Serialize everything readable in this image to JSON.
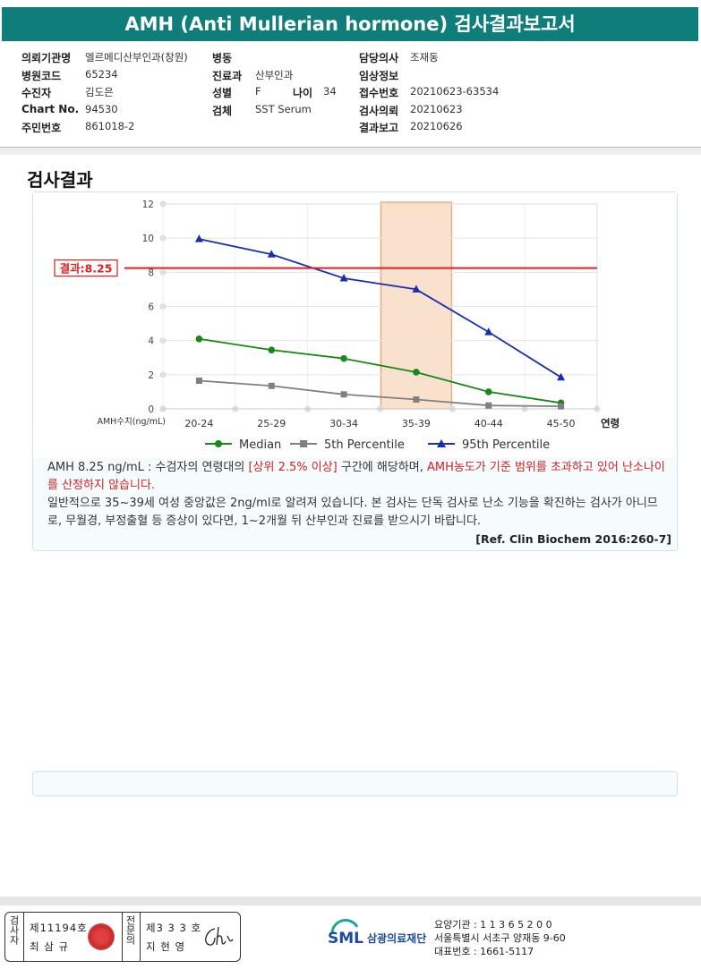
{
  "header": {
    "title": "AMH (Anti Mullerian hormone) 검사결과보고서"
  },
  "info": {
    "col1": [
      {
        "label": "의뢰기관명",
        "value": "엘르메디산부인과(창원)"
      },
      {
        "label": "병원코드",
        "value": "65234"
      },
      {
        "label": "수진자",
        "value": "김도은"
      },
      {
        "label": "Chart No.",
        "value": "94530"
      },
      {
        "label": "주민번호",
        "value": "861018-2"
      }
    ],
    "col2": [
      {
        "label": "병동",
        "value": ""
      },
      {
        "label": "진료과",
        "value": "산부인과"
      },
      {
        "label": "성별",
        "value": "F"
      },
      {
        "label": "검체",
        "value": "SST Serum"
      }
    ],
    "age": {
      "label": "나이",
      "value": "34"
    },
    "col3": [
      {
        "label": "담당의사",
        "value": "조재동"
      },
      {
        "label": "임상정보",
        "value": ""
      },
      {
        "label": "접수번호",
        "value": "20210623-63534"
      },
      {
        "label": "검사의뢰",
        "value": "20210623"
      },
      {
        "label": "결과보고",
        "value": "20210626"
      }
    ]
  },
  "section_title": "검사결과",
  "chart_data": {
    "type": "line",
    "categories": [
      "20-24",
      "25-29",
      "30-34",
      "35-39",
      "40-44",
      "45-50"
    ],
    "series": [
      {
        "name": "Median",
        "values": [
          4.1,
          3.45,
          2.95,
          2.15,
          1.0,
          0.35
        ],
        "color": "#168a16",
        "marker": "circle"
      },
      {
        "name": "5th Percentile",
        "values": [
          1.65,
          1.35,
          0.85,
          0.55,
          0.2,
          0.15
        ],
        "color": "#808080",
        "marker": "square"
      },
      {
        "name": "95th Percentile",
        "values": [
          9.95,
          9.05,
          7.65,
          7.0,
          4.5,
          1.85
        ],
        "color": "#1a2fb0",
        "marker": "triangle"
      }
    ],
    "ylim": [
      0,
      12
    ],
    "yticks": [
      0,
      2,
      4,
      6,
      8,
      10,
      12
    ],
    "ylabel": "AMH수치(ng/mL)",
    "xlabel": "연령",
    "result_line": {
      "value": 8.25,
      "label": "결과:8.25",
      "color": "#e02020"
    },
    "highlight_category": "35-39",
    "highlight_color": "#f6c9a6",
    "grid": true,
    "legend": "bottom"
  },
  "description": {
    "p1_a": "AMH  8.25 ng/mL : 수검자의 연령대의 ",
    "p1_red1": "[상위 2.5% 이상]",
    "p1_b": " 구간에 해당하며, ",
    "p1_red2": "AMH농도가 기준 범위를 초과하고 있어 난소나이를 산정하지 않습니다.",
    "p2": "일반적으로 35~39세 여성 중앙값은 2ng/ml로 알려져 있습니다. 본 검사는 단독 검사로 난소 기능을 확진하는 검사가 아니므로, 무월경, 부정출혈 등 증상이 있다면, 1~2개월 뒤 산부인과 진료를 받으시기 바랍니다.",
    "ref": "[Ref. Clin Biochem 2016:260-7]"
  },
  "footer": {
    "examiner_label": "검사자",
    "examiner_no": "제11194호",
    "examiner_name": "최 삼 규",
    "specialist_label": "전문의",
    "specialist_no": "제3 3 3 호",
    "specialist_name": "지 현 영",
    "org_logo": "SML",
    "org_name": "삼광의료재단",
    "code": "요양기관 : 1 1 3 6 5 2 0 0",
    "address": "서울특별시 서초구 양재동 9-60",
    "phone": "대표번호 : 1661-5117"
  }
}
